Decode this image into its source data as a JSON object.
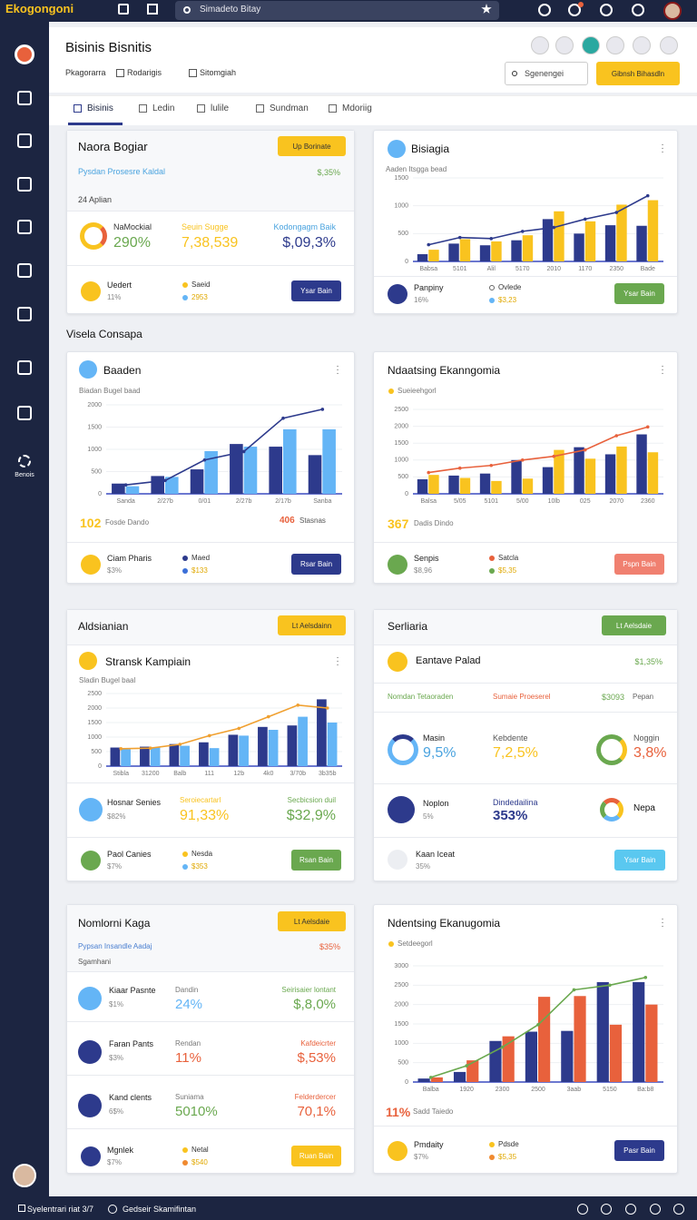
{
  "topbar": {
    "brand": "Ekogongoni",
    "search": "Simadeto Bitay"
  },
  "sidebar": {
    "label": "Benois"
  },
  "header": {
    "title": "Bisinis Bisnitis",
    "filters": [
      "Pkagorarra",
      "Rodarigis",
      "Sitomgiah"
    ],
    "search": "Sgenengei",
    "button": "Gibnsh Bihasdln"
  },
  "tabs": [
    "Bisinis",
    "Ledin",
    "lulile",
    "Sundman",
    "Mdoriig"
  ],
  "section_label": "Visela Consapa",
  "summary": {
    "title": "Naora Bogiar",
    "badge": "Up Borinate",
    "subtitle": "Pysdan Prosesre Kaldal",
    "subvalue": "$,35%",
    "label": "24 Aplian",
    "metrics": [
      {
        "label": "NaMockial",
        "value": "290%"
      },
      {
        "label": "Seuin Sugge",
        "value": "7,38,539"
      },
      {
        "label": "Kodongagm Baik",
        "value": "$,09,3%"
      }
    ],
    "footer": {
      "name": "Uedert",
      "sub": "11%",
      "legend": [
        "Saeid",
        "2953"
      ],
      "button": "Ysar Bain"
    }
  },
  "panels": [
    {
      "subtitle": "Aaden Itsgga bead",
      "footer": {
        "name": "Panpiny",
        "sub": "16%",
        "legend": [
          "Ovlede",
          "$3,23"
        ],
        "button": "Ysar Bain"
      }
    },
    {
      "subtitle": "Biadan Bugel baad",
      "stat": "102",
      "stat_label": "Fosde Dando",
      "stat2": "406",
      "stat2_label": "Stasnas",
      "footer": {
        "name": "Ciam Pharis",
        "sub": "$3%",
        "legend": [
          "Maed",
          "$133"
        ],
        "button": "Rsar Bain"
      }
    },
    {
      "subtitle": "Sueieehgorl",
      "stat": "367",
      "stat_label": "Dadis Dindo",
      "footer": {
        "name": "Senpis",
        "sub": "$8,96",
        "legend": [
          "Satcla",
          "$5,35"
        ],
        "button": "Pspn Bain"
      }
    },
    {
      "header": "Aldsianian",
      "badge": "Lt Aelsdainn",
      "subtitle": "Sladin Bugel baal",
      "metrics": [
        {
          "label": "Hosnar Senies",
          "value": "$82%"
        },
        {
          "label": "Seroiecartarl",
          "value": "91,33%"
        },
        {
          "label": "Secbicsion duil",
          "value": "$32,9%"
        }
      ],
      "footer": {
        "name": "Paol Canies",
        "sub": "$7%",
        "legend": [
          "Nesda",
          "$353"
        ],
        "button": "Rsan Bain"
      }
    },
    {
      "subtitle": "Setdeegorl",
      "stat": "11%",
      "stat_label": "Sadd Taiedo",
      "footer": {
        "name": "Pmdaity",
        "sub": "$7%",
        "legend": [
          "Pdsde",
          "$5,35"
        ],
        "button": "Pasr Bain"
      }
    }
  ],
  "segments": {
    "header": "Serliaria",
    "badge": "Lt Aelsdaie",
    "title": "Eantave Palad",
    "value": "$1,35%",
    "columns": [
      "Nomdan Tetaoraden",
      "Sumaie Proeserel",
      "$3093",
      "Pepan"
    ],
    "rings": [
      {
        "label": "Masin",
        "value": "9,5%"
      },
      {
        "label": "Kebdente",
        "value": "7,2,5%"
      },
      {
        "label": "Noggin",
        "value": "3,8%"
      }
    ],
    "row": [
      {
        "label": "Noplon",
        "value": "5%"
      },
      {
        "label": "Dindedailina",
        "value": "353%"
      },
      {
        "label": "Nepa"
      }
    ],
    "footer": {
      "name": "Kaan Iceat",
      "sub": "35%",
      "button": "Ysar Bain"
    }
  },
  "list": {
    "header": "Nomlorni Kaga",
    "badge": "Lt Aelsdaie",
    "subtitle": "Pypsan Insandle Aadaj",
    "subvalue": "$35%",
    "label": "Sgamhani",
    "rows": [
      [
        "Kiaar Pasnte",
        "$1%",
        "Dandin",
        "24%",
        "Seirisaier lontant",
        "$,8,0%"
      ],
      [
        "Faran Pants",
        "$3%",
        "Rendan",
        "11%",
        "Kafdeicrter",
        "$,53%"
      ],
      [
        "Kand clents",
        "6$%",
        "Suniama",
        "5010%",
        "Felderdercer",
        "70,1%"
      ]
    ],
    "footer": {
      "name": "Mgnlek",
      "sub": "$7%",
      "legend": [
        "Netal",
        "$540"
      ],
      "button": "Ruan Bain"
    }
  },
  "footer": {
    "left": "Syelentrari riat 3/7",
    "middle": "Gedseir Skamifintan"
  },
  "chart_data": [
    {
      "type": "bar",
      "title": "Bisiagia",
      "categories": [
        "Babsa",
        "5101",
        "Alil",
        "5170",
        "2010",
        "1170",
        "2350",
        "Bade"
      ],
      "ylim": [
        0,
        1500
      ],
      "yticks": [
        0,
        500,
        1000,
        1500
      ],
      "grid": true,
      "series": [
        {
          "type": "bar",
          "color": "#2d3a8c",
          "values": [
            130,
            320,
            290,
            380,
            760,
            500,
            650,
            640
          ]
        },
        {
          "type": "bar",
          "color": "#f9c31f",
          "values": [
            210,
            400,
            360,
            470,
            900,
            720,
            1020,
            1100
          ]
        },
        {
          "type": "line",
          "color": "#2d3a8c",
          "values": [
            300,
            430,
            410,
            540,
            610,
            760,
            880,
            1180
          ]
        }
      ]
    },
    {
      "type": "bar",
      "title": "Baaden",
      "categories": [
        "Sanda",
        "2/27b",
        "0/01",
        "2/27b",
        "2/17b",
        "Sanba"
      ],
      "ylim": [
        0,
        2000
      ],
      "yticks": [
        0,
        500,
        1000,
        1500,
        2000
      ],
      "grid": true,
      "series": [
        {
          "type": "bar",
          "color": "#2d3a8c",
          "values": [
            230,
            400,
            550,
            1120,
            1060,
            870
          ]
        },
        {
          "type": "bar",
          "color": "#64b5f6",
          "values": [
            170,
            380,
            960,
            1060,
            1450,
            1450
          ]
        },
        {
          "type": "line",
          "color": "#2d3a8c",
          "values": [
            200,
            300,
            760,
            950,
            1700,
            1900
          ]
        }
      ]
    },
    {
      "type": "bar",
      "title": "Ndaatsing Ekanngomia",
      "categories": [
        "Balsa",
        "5/05",
        "5101",
        "5/00",
        "10lb",
        "025",
        "2070",
        "2360"
      ],
      "ylim": [
        0,
        2500
      ],
      "yticks": [
        0,
        500,
        1000,
        1500,
        2000,
        2500
      ],
      "grid": true,
      "series": [
        {
          "type": "bar",
          "color": "#2d3a8c",
          "values": [
            430,
            540,
            600,
            1000,
            790,
            1380,
            1170,
            1760
          ]
        },
        {
          "type": "bar",
          "color": "#f9c31f",
          "values": [
            560,
            470,
            380,
            450,
            1300,
            1040,
            1400,
            1230
          ]
        },
        {
          "type": "line",
          "color": "#e8613c",
          "values": [
            630,
            760,
            840,
            1000,
            1110,
            1300,
            1720,
            1980
          ]
        }
      ]
    },
    {
      "type": "bar",
      "title": "Stransk Kampiain",
      "categories": [
        "Stibla",
        "31200",
        "Balb",
        "111",
        "12b",
        "4k0",
        "3/70b",
        "3b35b"
      ],
      "ylim": [
        0,
        2500
      ],
      "yticks": [
        0,
        500,
        1000,
        1500,
        2000,
        2500
      ],
      "grid": true,
      "series": [
        {
          "type": "bar",
          "color": "#2d3a8c",
          "values": [
            640,
            670,
            760,
            820,
            1080,
            1350,
            1400,
            2300
          ]
        },
        {
          "type": "bar",
          "color": "#64b5f6",
          "values": [
            580,
            640,
            700,
            620,
            1050,
            1250,
            1700,
            1500
          ]
        },
        {
          "type": "line",
          "color": "#f0a030",
          "values": [
            600,
            620,
            750,
            1050,
            1300,
            1700,
            2100,
            2000
          ]
        }
      ]
    },
    {
      "type": "bar",
      "title": "Ndentsing Ekanugomia",
      "categories": [
        "Balba",
        "1920",
        "2300",
        "2500",
        "3aab",
        "5150",
        "Ba:b8"
      ],
      "ylim": [
        0,
        3000
      ],
      "yticks": [
        0,
        500,
        1000,
        1500,
        2000,
        2500,
        3000
      ],
      "grid": true,
      "series": [
        {
          "type": "bar",
          "color": "#2d3a8c",
          "values": [
            90,
            260,
            1060,
            1300,
            1320,
            2580,
            2580
          ]
        },
        {
          "type": "bar",
          "color": "#e8613c",
          "values": [
            120,
            560,
            1180,
            2200,
            2220,
            1480,
            2000
          ]
        },
        {
          "type": "line",
          "color": "#6aa84f",
          "values": [
            120,
            420,
            900,
            1480,
            2380,
            2500,
            2700
          ]
        }
      ]
    }
  ]
}
